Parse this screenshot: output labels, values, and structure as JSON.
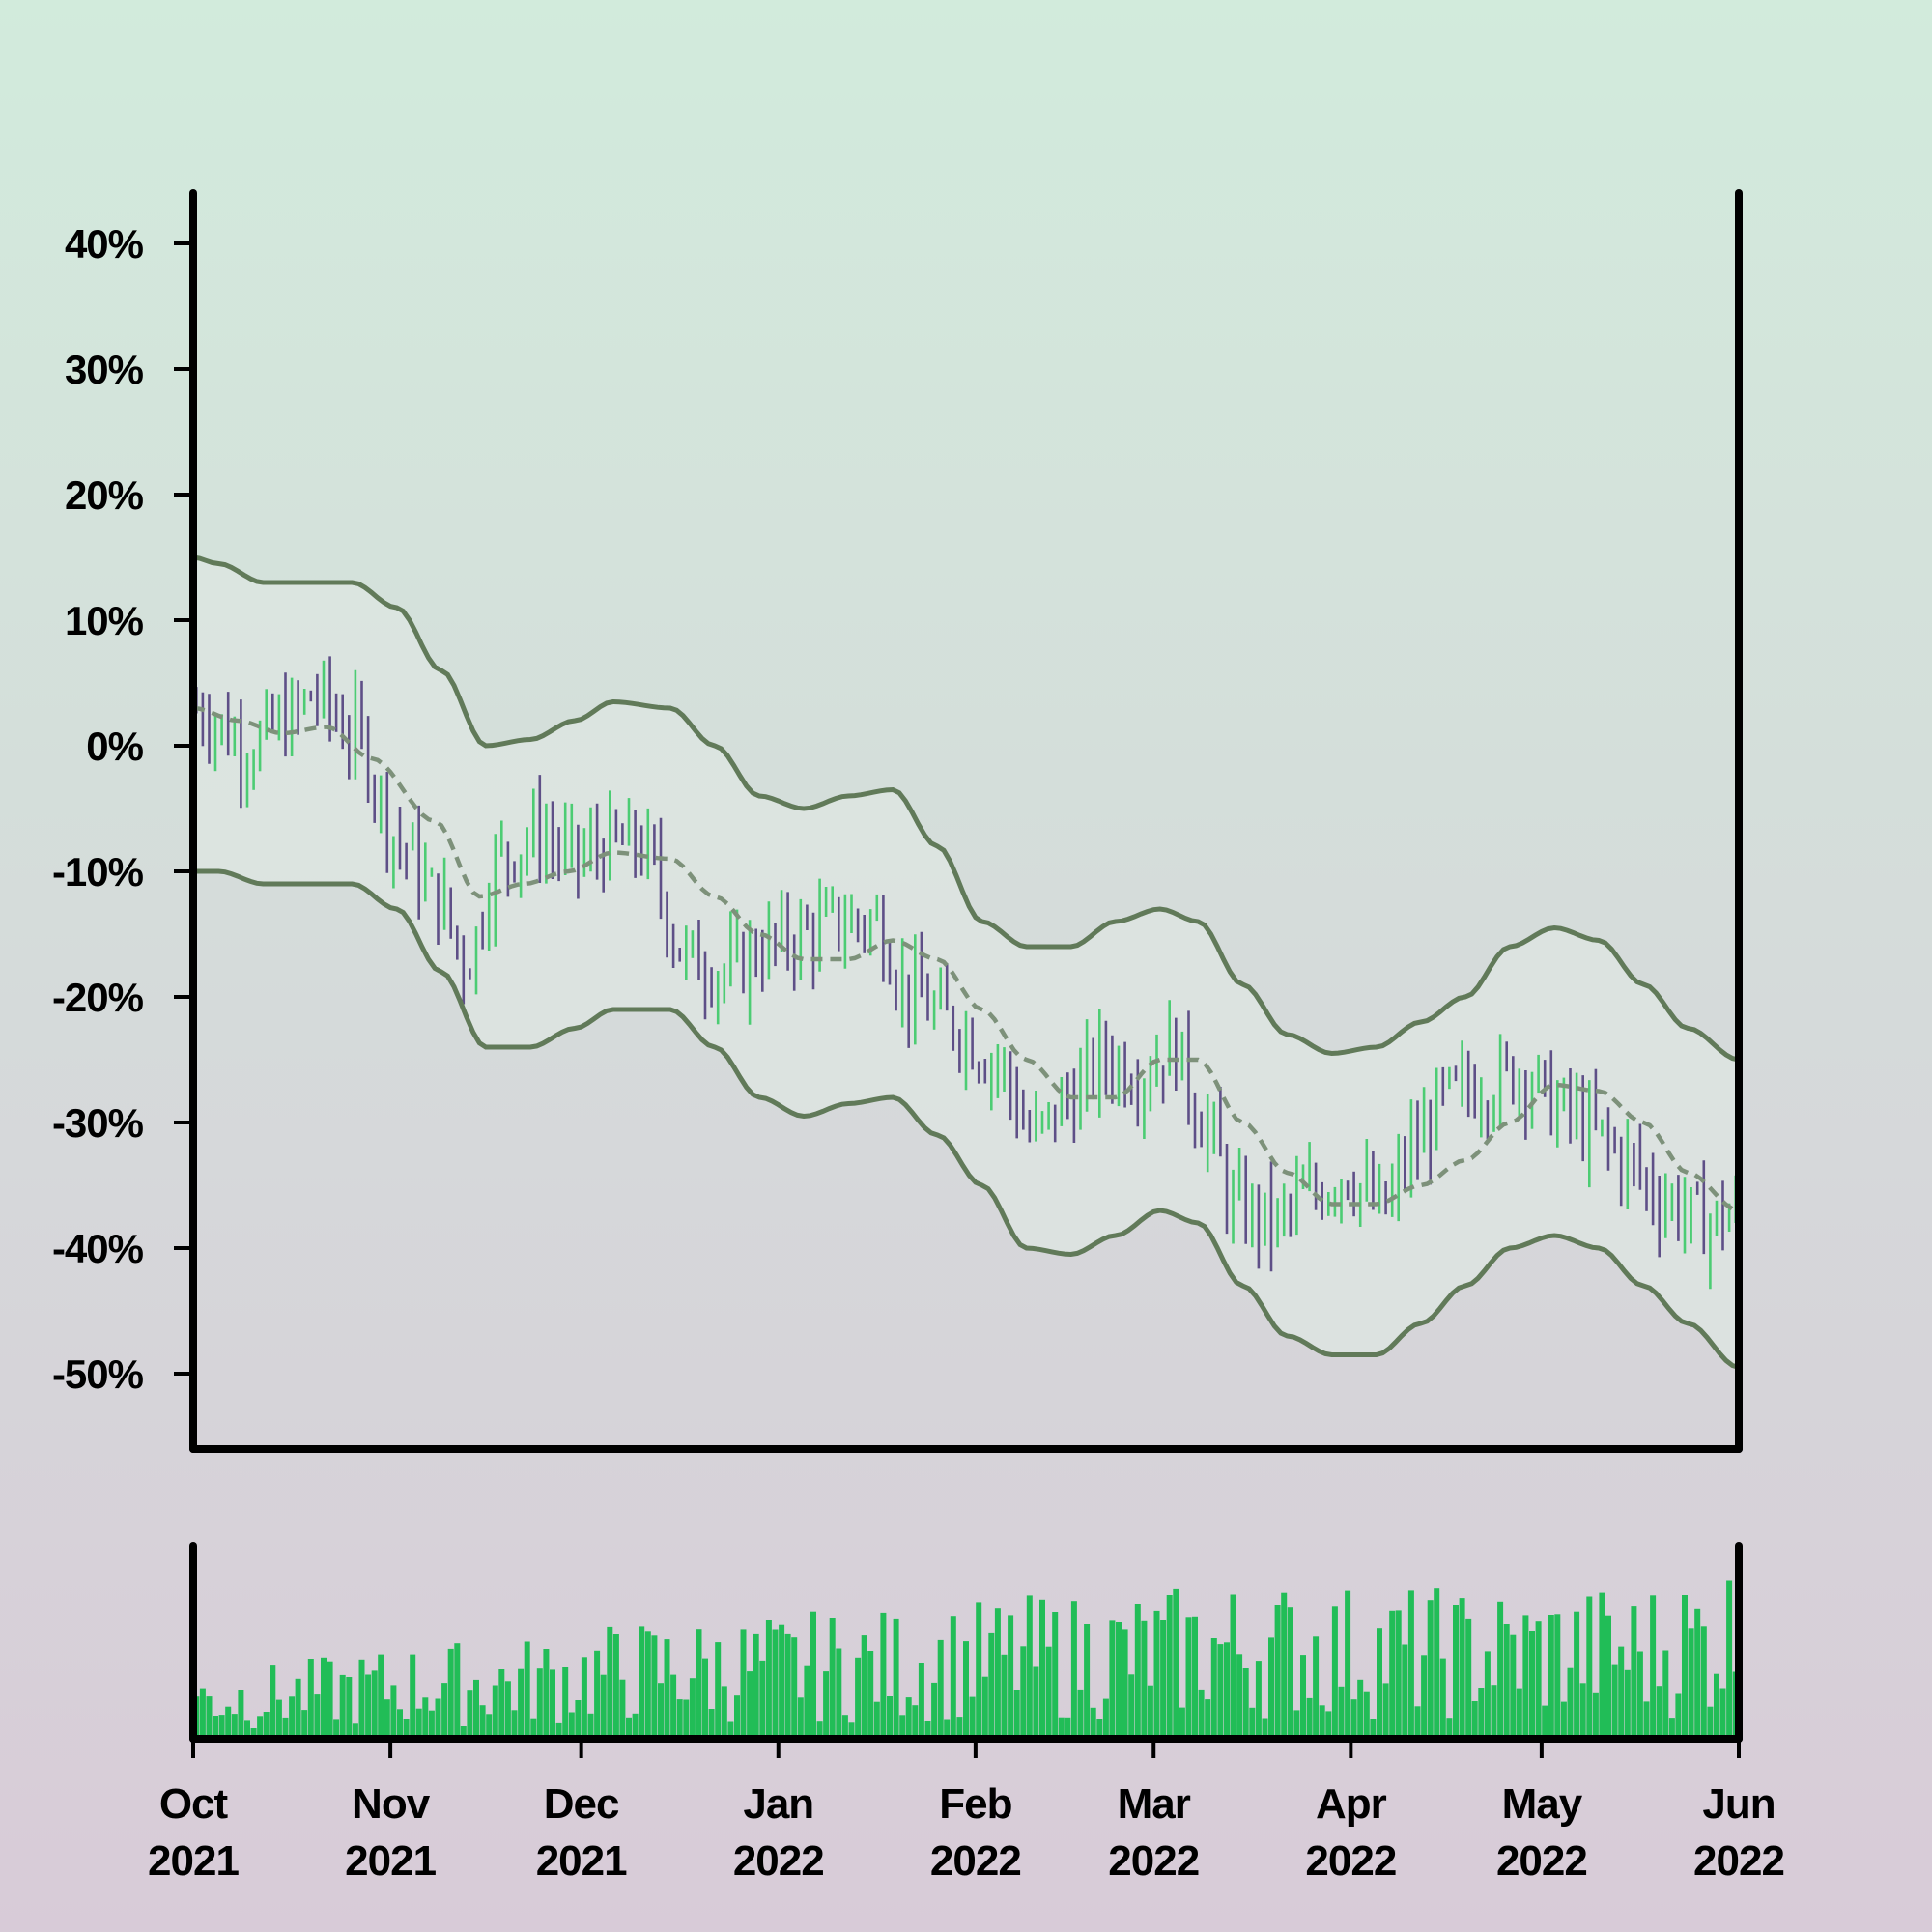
{
  "chart_data": {
    "type": "ohlc",
    "title": "",
    "xlabel": "",
    "ylabel": "",
    "x_range": [
      "2021-10-01",
      "2022-06-01"
    ],
    "ylim": [
      -56,
      44
    ],
    "y_ticks": [
      {
        "value": 40,
        "label": "40%"
      },
      {
        "value": 30,
        "label": "30%"
      },
      {
        "value": 20,
        "label": "20%"
      },
      {
        "value": 10,
        "label": "10%"
      },
      {
        "value": 0,
        "label": "0%"
      },
      {
        "value": -10,
        "label": "-10%"
      },
      {
        "value": -20,
        "label": "-20%"
      },
      {
        "value": -30,
        "label": "-30%"
      },
      {
        "value": -40,
        "label": "-40%"
      },
      {
        "value": -50,
        "label": "-50%"
      }
    ],
    "x_ticks": [
      {
        "date": "2021-10-01",
        "month": "Oct",
        "year": "2021"
      },
      {
        "date": "2021-11-01",
        "month": "Nov",
        "year": "2021"
      },
      {
        "date": "2021-12-01",
        "month": "Dec",
        "year": "2021"
      },
      {
        "date": "2022-01-01",
        "month": "Jan",
        "year": "2022"
      },
      {
        "date": "2022-02-01",
        "month": "Feb",
        "year": "2022"
      },
      {
        "date": "2022-03-01",
        "month": "Mar",
        "year": "2022"
      },
      {
        "date": "2022-04-01",
        "month": "Apr",
        "year": "2022"
      },
      {
        "date": "2022-05-01",
        "month": "May",
        "year": "2022"
      },
      {
        "date": "2022-06-01",
        "month": "Jun",
        "year": "2022"
      }
    ],
    "bands": {
      "middle": [
        [
          "2021-10-01",
          3
        ],
        [
          "2021-10-08",
          2
        ],
        [
          "2021-10-15",
          1
        ],
        [
          "2021-10-22",
          1.5
        ],
        [
          "2021-10-29",
          -1
        ],
        [
          "2021-11-08",
          -6
        ],
        [
          "2021-11-15",
          -12
        ],
        [
          "2021-11-22",
          -11
        ],
        [
          "2021-11-29",
          -10
        ],
        [
          "2021-12-06",
          -8.5
        ],
        [
          "2021-12-15",
          -9
        ],
        [
          "2021-12-22",
          -12
        ],
        [
          "2021-12-29",
          -15
        ],
        [
          "2022-01-05",
          -17
        ],
        [
          "2022-01-12",
          -17
        ],
        [
          "2022-01-19",
          -15.5
        ],
        [
          "2022-01-26",
          -17
        ],
        [
          "2022-02-02",
          -21
        ],
        [
          "2022-02-09",
          -25
        ],
        [
          "2022-02-16",
          -28
        ],
        [
          "2022-02-23",
          -28
        ],
        [
          "2022-03-02",
          -25
        ],
        [
          "2022-03-08",
          -25
        ],
        [
          "2022-03-15",
          -30
        ],
        [
          "2022-03-22",
          -34
        ],
        [
          "2022-03-29",
          -36.5
        ],
        [
          "2022-04-05",
          -36.5
        ],
        [
          "2022-04-12",
          -35
        ],
        [
          "2022-04-19",
          -33
        ],
        [
          "2022-04-26",
          -30
        ],
        [
          "2022-05-03",
          -27
        ],
        [
          "2022-05-10",
          -27.5
        ],
        [
          "2022-05-17",
          -30
        ],
        [
          "2022-05-24",
          -34
        ],
        [
          "2022-06-01",
          -37
        ]
      ],
      "upper": [
        [
          "2021-10-01",
          15
        ],
        [
          "2021-10-05",
          14.5
        ],
        [
          "2021-10-12",
          13
        ],
        [
          "2021-10-19",
          13
        ],
        [
          "2021-10-26",
          13
        ],
        [
          "2021-11-02",
          11
        ],
        [
          "2021-11-09",
          6
        ],
        [
          "2021-11-16",
          0
        ],
        [
          "2021-11-23",
          0.5
        ],
        [
          "2021-11-30",
          2
        ],
        [
          "2021-12-06",
          3.5
        ],
        [
          "2021-12-15",
          3
        ],
        [
          "2021-12-22",
          0
        ],
        [
          "2021-12-29",
          -4
        ],
        [
          "2022-01-05",
          -5
        ],
        [
          "2022-01-12",
          -4
        ],
        [
          "2022-01-19",
          -3.5
        ],
        [
          "2022-01-26",
          -8
        ],
        [
          "2022-02-02",
          -14
        ],
        [
          "2022-02-09",
          -16
        ],
        [
          "2022-02-16",
          -16
        ],
        [
          "2022-02-23",
          -14
        ],
        [
          "2022-03-02",
          -13
        ],
        [
          "2022-03-08",
          -14
        ],
        [
          "2022-03-15",
          -19
        ],
        [
          "2022-03-22",
          -23
        ],
        [
          "2022-03-29",
          -24.5
        ],
        [
          "2022-04-05",
          -24
        ],
        [
          "2022-04-12",
          -22
        ],
        [
          "2022-04-19",
          -20
        ],
        [
          "2022-04-26",
          -16
        ],
        [
          "2022-05-03",
          -14.5
        ],
        [
          "2022-05-10",
          -15.5
        ],
        [
          "2022-05-17",
          -19
        ],
        [
          "2022-05-24",
          -22.5
        ],
        [
          "2022-06-01",
          -25
        ]
      ],
      "lower": [
        [
          "2021-10-01",
          -10
        ],
        [
          "2021-10-05",
          -10
        ],
        [
          "2021-10-12",
          -11
        ],
        [
          "2021-10-19",
          -11
        ],
        [
          "2021-10-26",
          -11
        ],
        [
          "2021-11-02",
          -13
        ],
        [
          "2021-11-09",
          -18
        ],
        [
          "2021-11-16",
          -24
        ],
        [
          "2021-11-23",
          -24
        ],
        [
          "2021-11-30",
          -22.5
        ],
        [
          "2021-12-06",
          -21
        ],
        [
          "2021-12-15",
          -21
        ],
        [
          "2021-12-22",
          -24
        ],
        [
          "2021-12-29",
          -28
        ],
        [
          "2022-01-05",
          -29.5
        ],
        [
          "2022-01-12",
          -28.5
        ],
        [
          "2022-01-19",
          -28
        ],
        [
          "2022-01-26",
          -31
        ],
        [
          "2022-02-02",
          -35
        ],
        [
          "2022-02-09",
          -40
        ],
        [
          "2022-02-16",
          -40.5
        ],
        [
          "2022-02-23",
          -39
        ],
        [
          "2022-03-02",
          -37
        ],
        [
          "2022-03-08",
          -38
        ],
        [
          "2022-03-15",
          -43
        ],
        [
          "2022-03-22",
          -47
        ],
        [
          "2022-03-29",
          -48.5
        ],
        [
          "2022-04-05",
          -48.5
        ],
        [
          "2022-04-12",
          -46
        ],
        [
          "2022-04-19",
          -43
        ],
        [
          "2022-04-26",
          -40
        ],
        [
          "2022-05-03",
          -39
        ],
        [
          "2022-05-10",
          -40
        ],
        [
          "2022-05-17",
          -43
        ],
        [
          "2022-05-24",
          -46
        ],
        [
          "2022-06-01",
          -49.5
        ]
      ]
    },
    "price_path": [
      [
        "2021-10-01",
        3
      ],
      [
        "2021-10-10",
        0
      ],
      [
        "2021-10-16",
        2
      ],
      [
        "2021-10-20",
        4
      ],
      [
        "2021-10-26",
        1
      ],
      [
        "2021-11-03",
        -8
      ],
      [
        "2021-11-08",
        -12
      ],
      [
        "2021-11-13",
        -17
      ],
      [
        "2021-11-18",
        -9
      ],
      [
        "2021-11-24",
        -7
      ],
      [
        "2021-11-30",
        -9
      ],
      [
        "2021-12-05",
        -8
      ],
      [
        "2021-12-10",
        -8
      ],
      [
        "2021-12-18",
        -17
      ],
      [
        "2021-12-24",
        -18
      ],
      [
        "2021-12-30",
        -16
      ],
      [
        "2022-01-05",
        -15
      ],
      [
        "2022-01-11",
        -14
      ],
      [
        "2022-01-16",
        -14
      ],
      [
        "2022-01-22",
        -20
      ],
      [
        "2022-01-28",
        -22
      ],
      [
        "2022-02-04",
        -25
      ],
      [
        "2022-02-10",
        -31
      ],
      [
        "2022-02-16",
        -28
      ],
      [
        "2022-02-21",
        -25
      ],
      [
        "2022-02-27",
        -26
      ],
      [
        "2022-03-04",
        -24
      ],
      [
        "2022-03-09",
        -30
      ],
      [
        "2022-03-14",
        -37
      ],
      [
        "2022-03-20",
        -38
      ],
      [
        "2022-03-25",
        -36
      ],
      [
        "2022-03-31",
        -34
      ],
      [
        "2022-04-06",
        -37
      ],
      [
        "2022-04-11",
        -32
      ],
      [
        "2022-04-16",
        -28
      ],
      [
        "2022-04-22",
        -27
      ],
      [
        "2022-04-28",
        -26
      ],
      [
        "2022-05-04",
        -29
      ],
      [
        "2022-05-10",
        -31
      ],
      [
        "2022-05-14",
        -33
      ],
      [
        "2022-05-20",
        -36
      ],
      [
        "2022-05-27",
        -38
      ],
      [
        "2022-06-01",
        -37
      ]
    ],
    "volume_level": [
      [
        "2021-10-01",
        0.3
      ],
      [
        "2021-11-15",
        0.42
      ],
      [
        "2021-12-15",
        0.52
      ],
      [
        "2022-01-15",
        0.55
      ],
      [
        "2022-02-15",
        0.62
      ],
      [
        "2022-03-15",
        0.68
      ],
      [
        "2022-04-15",
        0.65
      ],
      [
        "2022-05-15",
        0.66
      ],
      [
        "2022-06-01",
        0.78
      ]
    ],
    "colors": {
      "up": "#4ccc73",
      "down": "#5e4f87",
      "band": "#617a59",
      "middle": "#7d917a",
      "band_fill": "#dee5e1",
      "volume": "#21bd57",
      "axis": "#000000",
      "background_top": "#d2ebdc",
      "background_bottom": "#d8cbd8"
    },
    "grid": false,
    "legend": "none"
  }
}
